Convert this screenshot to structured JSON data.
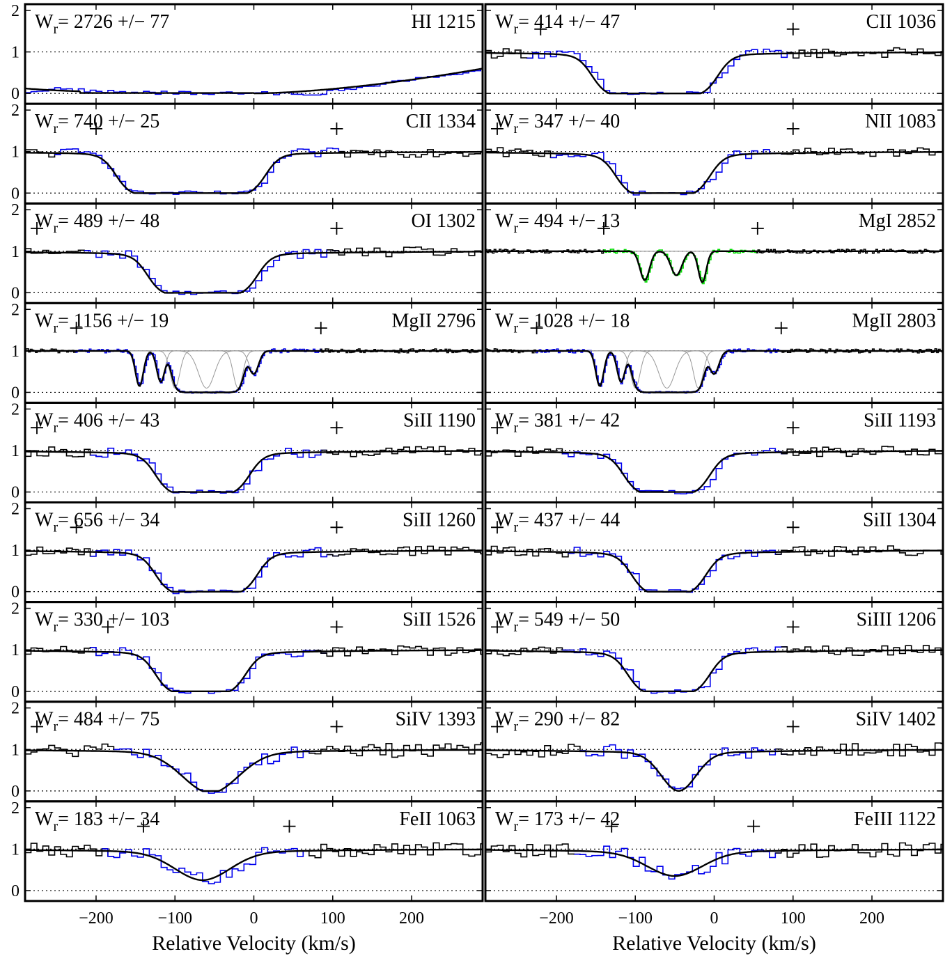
{
  "chart_data": {
    "type": "line",
    "layout": "2 columns x 9 rows of absorption-line panels",
    "xlabel": "Relative Velocity (km/s)",
    "xlim": [
      -290,
      290
    ],
    "ylim": [
      -0.15,
      2.05
    ],
    "x_ticks": [
      "−200",
      "−100",
      "0",
      "100",
      "200"
    ],
    "x_tick_values": [
      -200,
      -100,
      0,
      100,
      200
    ],
    "y_ticks": [
      "0",
      "1",
      "2"
    ],
    "y_tick_values": [
      0,
      1,
      2
    ],
    "grid": "dotted reference lines at normalized flux 0 and 1",
    "colors": {
      "data": "#000000",
      "fit_region": "#0000ee",
      "mgi_region": "#00dd00",
      "fit": "#000000",
      "components": "#999999"
    },
    "panels": [
      {
        "col": 0,
        "row": 0,
        "ion": "HI 1215",
        "w": "2726",
        "err": "77",
        "fit": [
          [
            -290,
            0.12,
            200,
            1
          ],
          [
            -40,
            0,
            300,
            0
          ]
        ],
        "profile": "broad",
        "ticks": []
      },
      {
        "col": 1,
        "row": 0,
        "ion": "CII 1036",
        "w": "414",
        "err": "47",
        "profile": "box",
        "vmin": -140,
        "vmax": -10,
        "ticks": [
          -220,
          100
        ]
      },
      {
        "col": 0,
        "row": 1,
        "ion": "CII 1334",
        "w": "740",
        "err": "25",
        "profile": "box",
        "vmin": -160,
        "vmax": 0,
        "ticks": [
          -200,
          105
        ]
      },
      {
        "col": 1,
        "row": 1,
        "ion": "NII 1083",
        "w": "347",
        "err": "40",
        "profile": "box",
        "vmin": -110,
        "vmax": -20,
        "ticks": [
          -275,
          100
        ]
      },
      {
        "col": 0,
        "row": 2,
        "ion": "OI 1302",
        "w": "489",
        "err": "48",
        "profile": "box",
        "vmin": -120,
        "vmax": -10,
        "ticks": [
          -275,
          105
        ]
      },
      {
        "col": 1,
        "row": 2,
        "ion": "MgI 2852",
        "w": "494",
        "err": "13",
        "profile": "mgi",
        "ticks": [
          -140,
          55
        ]
      },
      {
        "col": 0,
        "row": 3,
        "ion": "MgII 2796",
        "w": "1156",
        "err": "19",
        "profile": "mgii",
        "ticks": [
          -225,
          85
        ]
      },
      {
        "col": 1,
        "row": 3,
        "ion": "MgII 2803",
        "w": "1028",
        "err": "18",
        "profile": "mgii",
        "ticks": [
          -225,
          85
        ]
      },
      {
        "col": 0,
        "row": 4,
        "ion": "SiII 1190",
        "w": "406",
        "err": "43",
        "profile": "box",
        "vmin": -110,
        "vmax": -20,
        "ticks": [
          -275,
          105
        ]
      },
      {
        "col": 1,
        "row": 4,
        "ion": "SiII 1193",
        "w": "381",
        "err": "42",
        "profile": "box",
        "vmin": -100,
        "vmax": -20,
        "ticks": [
          -275,
          100
        ]
      },
      {
        "col": 0,
        "row": 5,
        "ion": "SiII 1260",
        "w": "656",
        "err": "34",
        "profile": "box",
        "vmin": -110,
        "vmax": -10,
        "ticks": [
          -225,
          105
        ]
      },
      {
        "col": 1,
        "row": 5,
        "ion": "SiII 1304",
        "w": "437",
        "err": "44",
        "profile": "box",
        "vmin": -90,
        "vmax": -25,
        "ticks": [
          -275,
          100
        ]
      },
      {
        "col": 0,
        "row": 6,
        "ion": "SiII 1526",
        "w": "330",
        "err": "103",
        "profile": "box",
        "vmin": -110,
        "vmax": -25,
        "ticks": [
          -185,
          105
        ]
      },
      {
        "col": 1,
        "row": 6,
        "ion": "SiIII 1206",
        "w": "549",
        "err": "50",
        "profile": "box",
        "vmin": -95,
        "vmax": -20,
        "ticks": [
          -275,
          100
        ]
      },
      {
        "col": 0,
        "row": 7,
        "ion": "SiIV 1393",
        "w": "484",
        "err": "75",
        "profile": "gauss",
        "vmin": -55,
        "depth": 0.95,
        "width": 35,
        "ticks": [
          -275,
          105
        ]
      },
      {
        "col": 1,
        "row": 7,
        "ion": "SiIV 1402",
        "w": "290",
        "err": "82",
        "profile": "gauss",
        "vmin": -45,
        "depth": 0.9,
        "width": 22,
        "ticks": [
          -275,
          100
        ]
      },
      {
        "col": 0,
        "row": 8,
        "ion": "FeII 1063",
        "w": "183",
        "err": "34",
        "profile": "gauss",
        "vmin": -65,
        "depth": 0.65,
        "width": 35,
        "ticks": [
          -140,
          45
        ]
      },
      {
        "col": 1,
        "row": 8,
        "ion": "FeIII 1122",
        "w": "173",
        "err": "42",
        "profile": "gauss",
        "vmin": -50,
        "depth": 0.55,
        "width": 35,
        "ticks": [
          -130,
          50
        ]
      }
    ]
  }
}
